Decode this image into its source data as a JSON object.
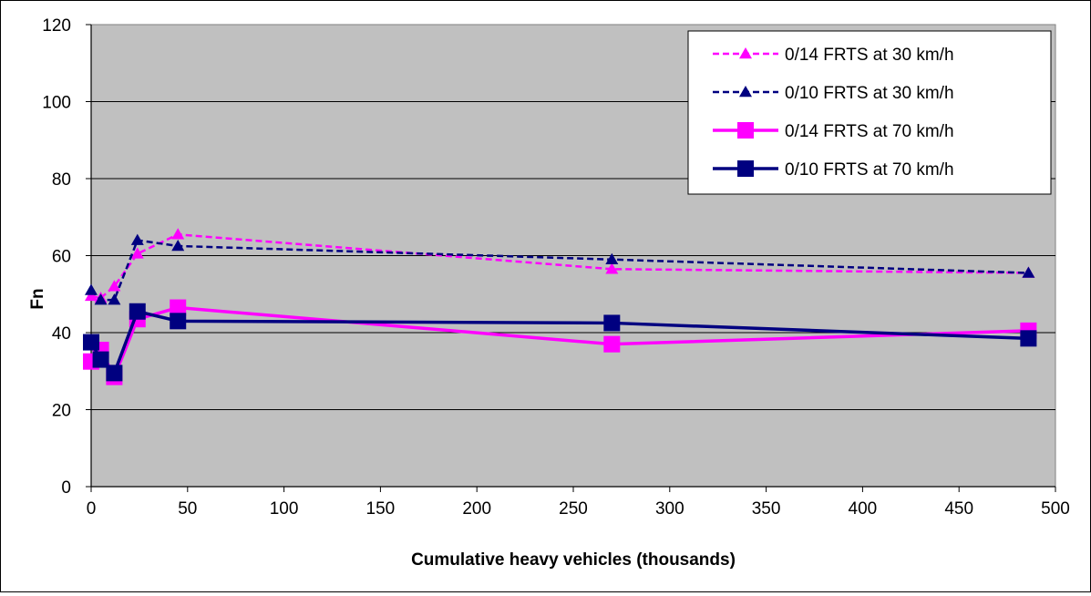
{
  "chart_data": {
    "type": "line",
    "xlabel": "Cumulative heavy vehicles (thousands)",
    "ylabel": "Fn",
    "xlim": [
      0,
      500
    ],
    "ylim": [
      0,
      120
    ],
    "xticks": [
      0,
      50,
      100,
      150,
      200,
      250,
      300,
      350,
      400,
      450,
      500
    ],
    "yticks": [
      0,
      20,
      40,
      60,
      80,
      100,
      120
    ],
    "grid": "horizontal",
    "legend_position": "top-right",
    "plot_background": "#c0c0c0",
    "series": [
      {
        "name": "0/14 FRTS at 30 km/h",
        "color": "#ff00ff",
        "line_style": "dashed",
        "marker": "triangle",
        "points": [
          [
            0,
            49.5
          ],
          [
            5,
            49
          ],
          [
            12,
            52
          ],
          [
            24,
            60.5
          ],
          [
            45,
            65.5
          ],
          [
            270,
            56.5
          ],
          [
            486,
            55.5
          ]
        ]
      },
      {
        "name": "0/10 FRTS at 30 km/h",
        "color": "#000080",
        "line_style": "dashed",
        "marker": "triangle",
        "points": [
          [
            0,
            51
          ],
          [
            5,
            48.5
          ],
          [
            12,
            48.5
          ],
          [
            24,
            64
          ],
          [
            45,
            62.5
          ],
          [
            270,
            59
          ],
          [
            486,
            55.5
          ]
        ]
      },
      {
        "name": "0/14 FRTS at 70 km/h",
        "color": "#ff00ff",
        "line_style": "solid",
        "marker": "square",
        "points": [
          [
            0,
            32.5
          ],
          [
            5,
            35.5
          ],
          [
            12,
            28.5
          ],
          [
            24,
            43.5
          ],
          [
            45,
            46.5
          ],
          [
            270,
            37
          ],
          [
            486,
            40.5
          ]
        ]
      },
      {
        "name": "0/10 FRTS at 70 km/h",
        "color": "#000080",
        "line_style": "solid",
        "marker": "square",
        "points": [
          [
            0,
            37.5
          ],
          [
            5,
            33
          ],
          [
            12,
            29.5
          ],
          [
            24,
            45.5
          ],
          [
            45,
            43
          ],
          [
            270,
            42.5
          ],
          [
            486,
            38.5
          ]
        ]
      }
    ]
  }
}
